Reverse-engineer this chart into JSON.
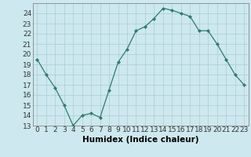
{
  "x": [
    0,
    1,
    2,
    3,
    4,
    5,
    6,
    7,
    8,
    9,
    10,
    11,
    12,
    13,
    14,
    15,
    16,
    17,
    18,
    19,
    20,
    21,
    22,
    23
  ],
  "y": [
    19.5,
    18.0,
    16.7,
    15.0,
    13.0,
    14.0,
    14.2,
    13.8,
    16.5,
    19.2,
    20.5,
    22.3,
    22.7,
    23.5,
    24.5,
    24.3,
    24.0,
    23.7,
    22.3,
    22.3,
    21.0,
    19.5,
    18.0,
    17.0
  ],
  "line_color": "#2e7d6e",
  "marker": "D",
  "marker_size": 2,
  "bg_color": "#cde8ee",
  "grid_color": "#aacdd6",
  "xlabel": "Humidex (Indice chaleur)",
  "xlim": [
    -0.5,
    23.5
  ],
  "ylim": [
    13,
    25
  ],
  "yticks": [
    13,
    14,
    15,
    16,
    17,
    18,
    19,
    20,
    21,
    22,
    23,
    24
  ],
  "xticks": [
    0,
    1,
    2,
    3,
    4,
    5,
    6,
    7,
    8,
    9,
    10,
    11,
    12,
    13,
    14,
    15,
    16,
    17,
    18,
    19,
    20,
    21,
    22,
    23
  ],
  "xtick_labels": [
    "0",
    "1",
    "2",
    "3",
    "4",
    "5",
    "6",
    "7",
    "8",
    "9",
    "10",
    "11",
    "12",
    "13",
    "14",
    "15",
    "16",
    "17",
    "18",
    "19",
    "20",
    "21",
    "22",
    "23"
  ],
  "axis_fontsize": 7.5,
  "tick_fontsize": 6.5
}
